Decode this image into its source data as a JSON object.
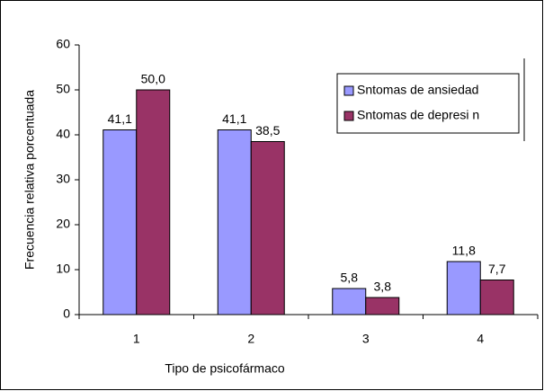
{
  "chart_data": {
    "type": "bar",
    "categories": [
      "1",
      "2",
      "3",
      "4"
    ],
    "series": [
      {
        "name": "Sntomas de ansiedad",
        "color": "#9999ff",
        "values": [
          41.1,
          41.1,
          5.8,
          11.8
        ],
        "value_labels": [
          "41,1",
          "41,1",
          "5,8",
          "11,8"
        ]
      },
      {
        "name": "Sntomas de depresi n",
        "color": "#993366",
        "values": [
          50.0,
          38.5,
          3.8,
          7.7
        ],
        "value_labels": [
          "50,0",
          "38,5",
          "3,8",
          "7,7"
        ]
      }
    ],
    "xlabel": "Tipo de psicofármaco",
    "ylabel": "Frecuencia relativa porcentuada",
    "ylim": [
      0,
      60
    ],
    "yticks": [
      0,
      10,
      20,
      30,
      40,
      50,
      60
    ],
    "grid": false,
    "legend": "upper right"
  }
}
